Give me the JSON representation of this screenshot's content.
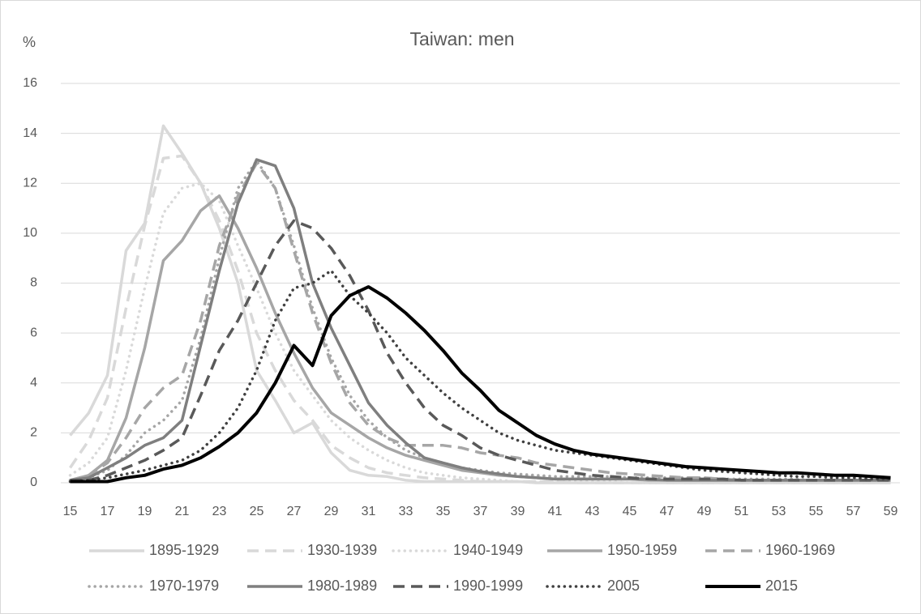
{
  "chart_data": {
    "type": "line",
    "title": "Taiwan: men",
    "y_label": "%",
    "categories": [
      "15",
      null,
      "17",
      null,
      "19",
      null,
      "21",
      null,
      "23",
      null,
      "25",
      null,
      "27",
      null,
      "29",
      null,
      "31",
      null,
      "33",
      null,
      "35",
      null,
      "37",
      null,
      "39",
      null,
      "41",
      null,
      "43",
      null,
      "45",
      null,
      "47",
      null,
      "49",
      null,
      "51",
      null,
      "53",
      null,
      "55",
      null,
      "57",
      null,
      "59"
    ],
    "ylim": [
      0,
      16
    ],
    "yticks": [
      0,
      2,
      4,
      6,
      8,
      10,
      12,
      14,
      16
    ],
    "grid": true,
    "series": [
      {
        "name": "1895-1929",
        "color": "#d9d9d9",
        "style": "solid",
        "values": [
          1.9,
          2.8,
          4.3,
          9.3,
          10.4,
          14.3,
          13.2,
          12.0,
          10.2,
          8.0,
          4.5,
          3.3,
          2.0,
          2.4,
          1.2,
          0.5,
          0.3,
          0.25,
          0.1,
          0.05,
          0.05,
          0.05,
          0.05,
          0.05,
          0.05,
          0,
          0,
          0,
          0,
          0,
          0,
          0,
          0,
          0,
          0,
          0,
          0,
          0,
          0,
          0,
          0,
          0,
          0,
          0,
          0
        ]
      },
      {
        "name": "1930-1939",
        "color": "#d9d9d9",
        "style": "dashed",
        "values": [
          0.6,
          1.7,
          3.4,
          7.0,
          10.3,
          13.0,
          13.1,
          12.0,
          10.5,
          8.5,
          6.0,
          4.5,
          3.3,
          2.5,
          1.5,
          1.0,
          0.6,
          0.4,
          0.3,
          0.2,
          0.15,
          0.1,
          0.05,
          0.05,
          0.05,
          0.05,
          0.05,
          0,
          0,
          0,
          0,
          0,
          0,
          0,
          0,
          0,
          0,
          0,
          0,
          0,
          0,
          0,
          0,
          0,
          0
        ]
      },
      {
        "name": "1940-1949",
        "color": "#d9d9d9",
        "style": "dotted",
        "values": [
          0.3,
          0.8,
          1.8,
          4.5,
          7.8,
          10.8,
          11.8,
          12.0,
          11.3,
          9.5,
          7.8,
          6.0,
          4.5,
          3.5,
          2.5,
          1.8,
          1.3,
          0.9,
          0.6,
          0.4,
          0.3,
          0.2,
          0.15,
          0.1,
          0.05,
          0.05,
          0.05,
          0.05,
          0.05,
          0.05,
          0,
          0,
          0,
          0,
          0,
          0,
          0,
          0,
          0,
          0,
          0,
          0,
          0,
          0,
          0
        ]
      },
      {
        "name": "1950-1959",
        "color": "#a6a6a6",
        "style": "solid",
        "values": [
          0.1,
          0.3,
          0.9,
          2.6,
          5.4,
          8.9,
          9.7,
          10.9,
          11.5,
          10.2,
          8.6,
          6.8,
          5.2,
          3.8,
          2.8,
          2.3,
          1.8,
          1.4,
          1.1,
          0.9,
          0.7,
          0.5,
          0.4,
          0.3,
          0.25,
          0.2,
          0.15,
          0.15,
          0.15,
          0.15,
          0.15,
          0.1,
          0.1,
          0.1,
          0.1,
          0.1,
          0.1,
          0.1,
          0.1,
          0.1,
          0.1,
          0.1,
          0.1,
          0.1,
          0.1
        ]
      },
      {
        "name": "1960-1969",
        "color": "#a6a6a6",
        "style": "dashed",
        "values": [
          0.1,
          0.3,
          0.8,
          1.8,
          3.0,
          3.8,
          4.3,
          6.5,
          9.5,
          11.5,
          12.8,
          11.8,
          9.3,
          6.8,
          4.8,
          3.2,
          2.3,
          1.8,
          1.5,
          1.5,
          1.5,
          1.4,
          1.2,
          1.1,
          1.0,
          0.8,
          0.7,
          0.6,
          0.5,
          0.4,
          0.35,
          0.3,
          0.25,
          0.2,
          0.2,
          0.15,
          0.1,
          0.1,
          0.1,
          0.1,
          0.1,
          0.1,
          0.1,
          0.1,
          0.1
        ]
      },
      {
        "name": "1970-1979",
        "color": "#a6a6a6",
        "style": "dotted",
        "values": [
          0.1,
          0.2,
          0.5,
          1.1,
          2.0,
          2.5,
          3.3,
          5.8,
          9.0,
          11.8,
          12.9,
          11.8,
          9.5,
          7.0,
          5.0,
          3.5,
          2.5,
          1.8,
          1.3,
          1.0,
          0.8,
          0.6,
          0.5,
          0.4,
          0.35,
          0.3,
          0.25,
          0.25,
          0.25,
          0.25,
          0.2,
          0.2,
          0.2,
          0.2,
          0.2,
          0.15,
          0.15,
          0.15,
          0.15,
          0.15,
          0.1,
          0.1,
          0.1,
          0.1,
          0.1
        ]
      },
      {
        "name": "1980-1989",
        "color": "#7f7f7f",
        "style": "solid",
        "values": [
          0.1,
          0.2,
          0.6,
          1.0,
          1.5,
          1.8,
          2.5,
          5.5,
          8.5,
          11.2,
          12.95,
          12.7,
          11.0,
          8.0,
          6.2,
          4.7,
          3.2,
          2.3,
          1.6,
          1.0,
          0.8,
          0.6,
          0.45,
          0.35,
          0.25,
          0.2,
          0.15,
          0.15,
          0.15,
          0.15,
          0.15,
          0.15,
          0.1,
          0.1,
          0.1,
          0.1,
          0.1,
          0.1,
          0.1,
          0.1,
          0.1,
          0.1,
          0.1,
          0.1,
          0.1
        ]
      },
      {
        "name": "1990-1999",
        "color": "#595959",
        "style": "dashed",
        "values": [
          0.1,
          0.1,
          0.3,
          0.6,
          0.9,
          1.3,
          1.8,
          3.5,
          5.3,
          6.5,
          8.0,
          9.5,
          10.5,
          10.2,
          9.4,
          8.3,
          6.9,
          5.2,
          4.0,
          3.0,
          2.3,
          1.9,
          1.4,
          1.1,
          0.9,
          0.7,
          0.5,
          0.4,
          0.3,
          0.25,
          0.2,
          0.15,
          0.15,
          0.15,
          0.15,
          0.15,
          0.1,
          0.1,
          0.1,
          0.1,
          0.1,
          0.1,
          0.1,
          0.1,
          0.1
        ]
      },
      {
        "name": "2005",
        "color": "#404040",
        "style": "dotted",
        "values": [
          0.05,
          0.1,
          0.2,
          0.35,
          0.5,
          0.7,
          0.9,
          1.3,
          2.0,
          3.0,
          4.5,
          6.5,
          7.8,
          8.0,
          8.5,
          7.5,
          6.8,
          6.0,
          5.0,
          4.3,
          3.6,
          3.0,
          2.5,
          2.0,
          1.7,
          1.5,
          1.3,
          1.2,
          1.1,
          1.0,
          0.9,
          0.8,
          0.7,
          0.6,
          0.5,
          0.45,
          0.4,
          0.35,
          0.3,
          0.25,
          0.25,
          0.2,
          0.2,
          0.15,
          0.15
        ]
      },
      {
        "name": "2015",
        "color": "#000000",
        "style": "solid",
        "values": [
          0.05,
          0.05,
          0.05,
          0.2,
          0.3,
          0.55,
          0.7,
          1.0,
          1.45,
          2.0,
          2.8,
          4.0,
          5.5,
          4.7,
          6.7,
          7.5,
          7.85,
          7.4,
          6.8,
          6.1,
          5.3,
          4.4,
          3.7,
          2.9,
          2.4,
          1.9,
          1.55,
          1.3,
          1.15,
          1.05,
          0.95,
          0.85,
          0.75,
          0.65,
          0.6,
          0.55,
          0.5,
          0.45,
          0.4,
          0.4,
          0.35,
          0.3,
          0.3,
          0.25,
          0.2
        ]
      }
    ]
  }
}
